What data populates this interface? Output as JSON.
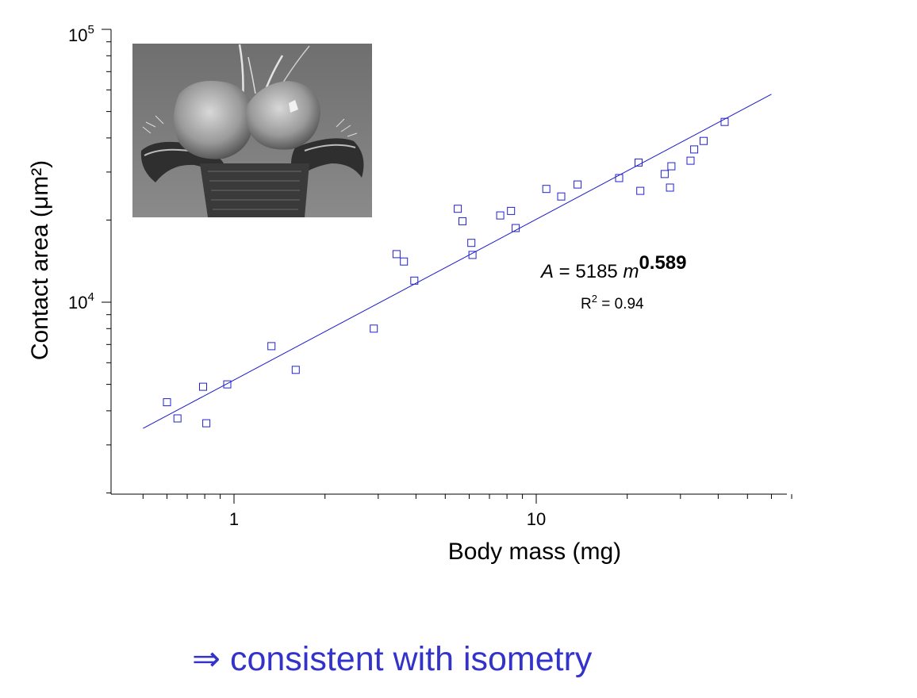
{
  "chart_data": {
    "type": "scatter",
    "x_scale": "log",
    "y_scale": "log",
    "xlabel": "Body mass (mg)",
    "ylabel": "Contact area (μm²)",
    "xlim": [
      0.44,
      70
    ],
    "ylim": [
      2000,
      100000
    ],
    "x_ticks": [
      {
        "value": 1,
        "label": "1"
      },
      {
        "value": 10,
        "label": "10"
      }
    ],
    "y_ticks": [
      {
        "value": 10000,
        "base": "10",
        "exp": "4"
      },
      {
        "value": 100000,
        "base": "10",
        "exp": "5"
      }
    ],
    "points": [
      {
        "x": 0.6,
        "y": 4300
      },
      {
        "x": 0.65,
        "y": 3750
      },
      {
        "x": 0.79,
        "y": 4900
      },
      {
        "x": 0.81,
        "y": 3600
      },
      {
        "x": 0.95,
        "y": 5000
      },
      {
        "x": 1.33,
        "y": 6900
      },
      {
        "x": 1.6,
        "y": 5650
      },
      {
        "x": 2.9,
        "y": 8000
      },
      {
        "x": 3.45,
        "y": 15000
      },
      {
        "x": 3.65,
        "y": 14100
      },
      {
        "x": 3.95,
        "y": 12000
      },
      {
        "x": 5.5,
        "y": 22000
      },
      {
        "x": 5.7,
        "y": 19800
      },
      {
        "x": 6.1,
        "y": 16500
      },
      {
        "x": 6.15,
        "y": 14900
      },
      {
        "x": 7.6,
        "y": 20800
      },
      {
        "x": 8.25,
        "y": 21600
      },
      {
        "x": 8.55,
        "y": 18700
      },
      {
        "x": 10.8,
        "y": 26000
      },
      {
        "x": 12.1,
        "y": 24400
      },
      {
        "x": 13.7,
        "y": 27000
      },
      {
        "x": 18.8,
        "y": 28500
      },
      {
        "x": 21.8,
        "y": 32500
      },
      {
        "x": 22.1,
        "y": 25600
      },
      {
        "x": 26.6,
        "y": 29500
      },
      {
        "x": 27.7,
        "y": 26300
      },
      {
        "x": 28.0,
        "y": 31500
      },
      {
        "x": 32.4,
        "y": 33000
      },
      {
        "x": 33.3,
        "y": 36300
      },
      {
        "x": 35.8,
        "y": 39000
      },
      {
        "x": 42.0,
        "y": 45800
      }
    ],
    "fit": {
      "coefficient": 5185,
      "exponent": 0.589,
      "x_range": [
        0.5,
        60
      ],
      "equation_var_a": "A",
      "equation_middle": " = 5185 ",
      "equation_var_m": "m",
      "equation_exponent": "0.589",
      "r2_label": "R",
      "r2_sup": "2",
      "r2_value": " = 0.94"
    },
    "series_color": "#2222cc",
    "grid": false
  },
  "inset_image": "insect-tarsus-micrograph",
  "conclusion": {
    "arrow": "⇒",
    "text": " consistent with isometry",
    "color": "#3333cc"
  }
}
